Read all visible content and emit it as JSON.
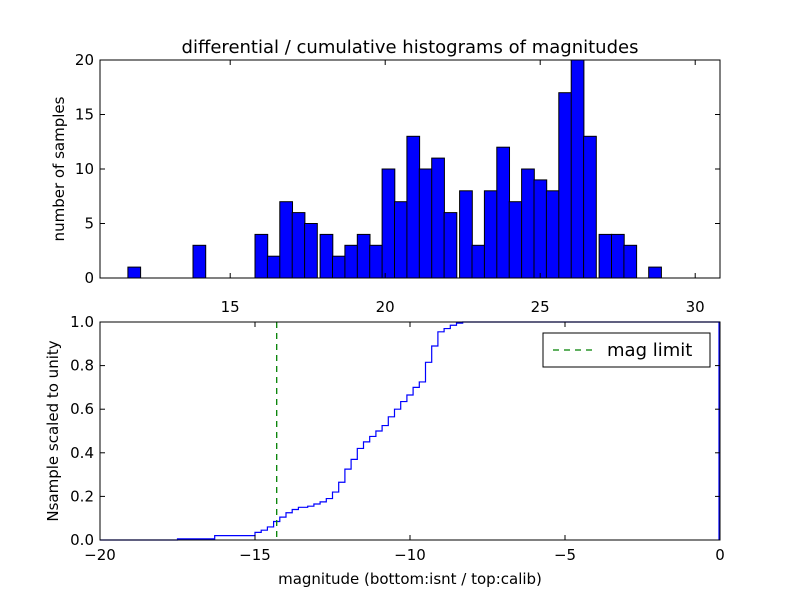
{
  "chart_data": [
    {
      "type": "bar",
      "title": "differential / cumulative histograms of magnitudes",
      "xlabel": "",
      "ylabel": "number of samples",
      "xlim": [
        10.8,
        30.8
      ],
      "ylim": [
        0,
        20
      ],
      "xticks": [
        15,
        20,
        25,
        30
      ],
      "yticks": [
        0,
        5,
        10,
        15,
        20
      ],
      "bin_width": 0.41,
      "color": "#0000ff",
      "bins": [
        {
          "x": 11.7,
          "count": 1
        },
        {
          "x": 13.8,
          "count": 3
        },
        {
          "x": 15.8,
          "count": 4
        },
        {
          "x": 16.2,
          "count": 2
        },
        {
          "x": 16.6,
          "count": 7
        },
        {
          "x": 17.0,
          "count": 6
        },
        {
          "x": 17.4,
          "count": 5
        },
        {
          "x": 17.9,
          "count": 4
        },
        {
          "x": 18.3,
          "count": 2
        },
        {
          "x": 18.7,
          "count": 3
        },
        {
          "x": 19.1,
          "count": 4
        },
        {
          "x": 19.5,
          "count": 3
        },
        {
          "x": 19.9,
          "count": 10
        },
        {
          "x": 20.3,
          "count": 7
        },
        {
          "x": 20.7,
          "count": 13
        },
        {
          "x": 21.1,
          "count": 10
        },
        {
          "x": 21.5,
          "count": 11
        },
        {
          "x": 21.9,
          "count": 6
        },
        {
          "x": 22.4,
          "count": 8
        },
        {
          "x": 22.8,
          "count": 3
        },
        {
          "x": 23.2,
          "count": 8
        },
        {
          "x": 23.6,
          "count": 12
        },
        {
          "x": 24.0,
          "count": 7
        },
        {
          "x": 24.4,
          "count": 10
        },
        {
          "x": 24.8,
          "count": 9
        },
        {
          "x": 25.2,
          "count": 8
        },
        {
          "x": 25.6,
          "count": 17
        },
        {
          "x": 26.0,
          "count": 20
        },
        {
          "x": 26.4,
          "count": 13
        },
        {
          "x": 26.9,
          "count": 4
        },
        {
          "x": 27.3,
          "count": 4
        },
        {
          "x": 27.7,
          "count": 3
        },
        {
          "x": 28.5,
          "count": 1
        }
      ]
    },
    {
      "type": "line",
      "step": true,
      "title": "",
      "xlabel": "magnitude (bottom:isnt / top:calib)",
      "ylabel": "Nsample scaled to unity",
      "xlim": [
        -20,
        0
      ],
      "ylim": [
        0,
        1.0
      ],
      "xticks": [
        -20,
        -15,
        -10,
        -5,
        0
      ],
      "xtick_labels": [
        "−20",
        "−15",
        "−10",
        "−5",
        "0"
      ],
      "yticks": [
        0.0,
        0.2,
        0.4,
        0.6,
        0.8,
        1.0
      ],
      "ytick_labels": [
        "0.0",
        "0.2",
        "0.4",
        "0.6",
        "0.8",
        "1.0"
      ],
      "series": [
        {
          "name": "cumulative",
          "color": "#0000ff",
          "x": [
            -20,
            -17.5,
            -16.3,
            -15.0,
            -14.8,
            -14.6,
            -14.4,
            -14.2,
            -14.0,
            -13.8,
            -13.6,
            -13.3,
            -13.1,
            -12.9,
            -12.7,
            -12.5,
            -12.3,
            -12.1,
            -11.9,
            -11.7,
            -11.5,
            -11.3,
            -11.1,
            -10.9,
            -10.7,
            -10.5,
            -10.3,
            -10.1,
            -9.9,
            -9.7,
            -9.5,
            -9.3,
            -9.1,
            -8.9,
            -8.7,
            -8.5,
            -8.3,
            -8.1,
            -7.9,
            -7.7,
            -7.5,
            -7.3,
            0
          ],
          "y": [
            0.0,
            0.005,
            0.02,
            0.035,
            0.045,
            0.06,
            0.085,
            0.105,
            0.125,
            0.14,
            0.15,
            0.155,
            0.165,
            0.175,
            0.19,
            0.22,
            0.265,
            0.325,
            0.37,
            0.42,
            0.45,
            0.475,
            0.5,
            0.525,
            0.565,
            0.6,
            0.635,
            0.665,
            0.7,
            0.725,
            0.815,
            0.89,
            0.955,
            0.97,
            0.985,
            0.995,
            1.0,
            1.0,
            1.0,
            1.0,
            1.0,
            1.0,
            1.0
          ]
        }
      ],
      "vline": {
        "x": -14.3,
        "label": "mag limit",
        "color": "#008000",
        "style": "dashed"
      },
      "legend": {
        "position": "upper-right",
        "entries": [
          "mag limit"
        ]
      }
    }
  ]
}
